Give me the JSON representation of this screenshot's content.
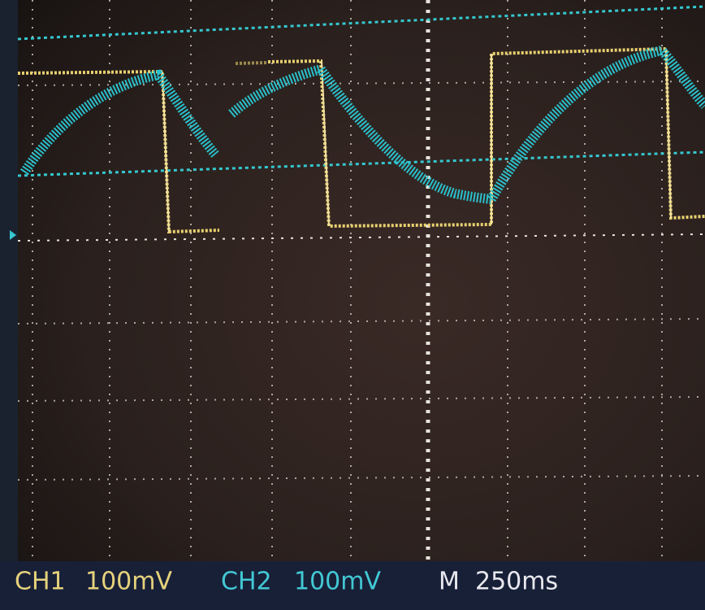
{
  "status_bar": {
    "ch1": {
      "label": "CH1",
      "scale": "100mV"
    },
    "ch2": {
      "label": "CH2",
      "scale": "100mV"
    },
    "timebase": {
      "label": "M",
      "scale": "250ms"
    }
  }
}
